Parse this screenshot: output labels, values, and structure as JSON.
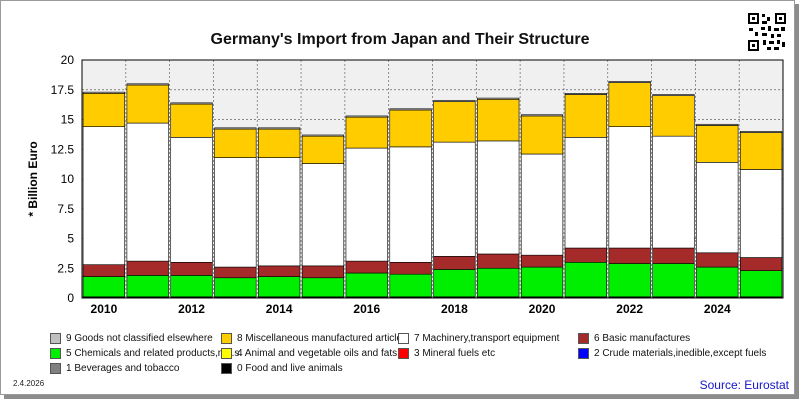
{
  "chart_data": {
    "type": "bar",
    "stacked": true,
    "title": "Germany's Import from Japan and Their Structure",
    "ylabel": "* Billion Euro",
    "xlabel": "",
    "ylim": [
      0,
      20
    ],
    "yticks": [
      "0",
      "2.5",
      "5",
      "7.5",
      "10",
      "12.5",
      "15",
      "17.5",
      "20"
    ],
    "grid": true,
    "legend_position": "bottom",
    "categories": [
      "2010",
      "2011",
      "2012",
      "2013",
      "2014",
      "2015",
      "2016",
      "2017",
      "2018",
      "2019",
      "2020",
      "2021",
      "2022",
      "2023",
      "2024",
      "2025"
    ],
    "x_tick_labels": [
      "2010",
      "2012",
      "2014",
      "2016",
      "2018",
      "2020",
      "2022",
      "2024"
    ],
    "series": [
      {
        "name": "0 Food and live animals",
        "color": "#000000",
        "values": [
          0.05,
          0.05,
          0.05,
          0.05,
          0.05,
          0.05,
          0.05,
          0.05,
          0.05,
          0.05,
          0.05,
          0.05,
          0.05,
          0.05,
          0.05,
          0.05
        ]
      },
      {
        "name": "1 Beverages and tobacco",
        "color": "#808080",
        "values": [
          0.0,
          0.0,
          0.0,
          0.0,
          0.0,
          0.0,
          0.0,
          0.0,
          0.0,
          0.0,
          0.0,
          0.0,
          0.0,
          0.0,
          0.0,
          0.0
        ]
      },
      {
        "name": "2 Crude materials,inedible,except fuels",
        "color": "#0000ff",
        "values": [
          0.05,
          0.05,
          0.05,
          0.05,
          0.05,
          0.05,
          0.05,
          0.05,
          0.05,
          0.05,
          0.05,
          0.05,
          0.05,
          0.05,
          0.05,
          0.05
        ]
      },
      {
        "name": "3 Mineral fuels etc",
        "color": "#ff0000",
        "values": [
          0.0,
          0.0,
          0.0,
          0.0,
          0.0,
          0.0,
          0.0,
          0.0,
          0.0,
          0.0,
          0.0,
          0.0,
          0.0,
          0.0,
          0.0,
          0.0
        ]
      },
      {
        "name": "4 Animal and vegetable oils and fats",
        "color": "#ffff00",
        "values": [
          0.0,
          0.0,
          0.0,
          0.0,
          0.0,
          0.0,
          0.0,
          0.0,
          0.0,
          0.0,
          0.0,
          0.0,
          0.0,
          0.0,
          0.0,
          0.0
        ]
      },
      {
        "name": "5 Chemicals and related products,n.e.s.",
        "color": "#00ee00",
        "values": [
          1.7,
          1.8,
          1.8,
          1.6,
          1.7,
          1.6,
          2.0,
          1.9,
          2.3,
          2.4,
          2.5,
          2.9,
          2.8,
          2.8,
          2.5,
          2.2
        ]
      },
      {
        "name": "6 Basic manufactures",
        "color": "#a52a2a",
        "values": [
          1.0,
          1.2,
          1.1,
          0.9,
          0.9,
          1.0,
          1.0,
          1.0,
          1.1,
          1.2,
          1.0,
          1.2,
          1.3,
          1.3,
          1.2,
          1.1
        ]
      },
      {
        "name": "7 Machinery,transport equipment",
        "color": "#ffffff",
        "values": [
          11.6,
          11.6,
          10.5,
          9.2,
          9.1,
          8.6,
          9.5,
          9.7,
          9.6,
          9.5,
          8.5,
          9.3,
          10.2,
          9.4,
          7.6,
          7.4
        ]
      },
      {
        "name": "8 Miscellaneous manufactured articles",
        "color": "#ffcc00",
        "values": [
          2.8,
          3.2,
          2.8,
          2.4,
          2.4,
          2.3,
          2.6,
          3.1,
          3.4,
          3.5,
          3.2,
          3.6,
          3.7,
          3.4,
          3.1,
          3.1
        ]
      },
      {
        "name": "9 Goods not classified elsewhere",
        "color": "#c0c0c0",
        "values": [
          0.1,
          0.1,
          0.1,
          0.1,
          0.1,
          0.1,
          0.1,
          0.1,
          0.1,
          0.1,
          0.1,
          0.1,
          0.1,
          0.1,
          0.1,
          0.1
        ]
      }
    ]
  },
  "legend": {
    "items": [
      {
        "label": "9 Goods not classified elsewhere",
        "color": "#c0c0c0"
      },
      {
        "label": "8 Miscellaneous manufactured articles",
        "color": "#ffcc00"
      },
      {
        "label": "7 Machinery,transport equipment",
        "color": "#ffffff"
      },
      {
        "label": "6 Basic manufactures",
        "color": "#a52a2a"
      },
      {
        "label": "5 Chemicals and related products,n.e.s.",
        "color": "#00ee00"
      },
      {
        "label": "4 Animal and vegetable oils and fats",
        "color": "#ffff00"
      },
      {
        "label": "3 Mineral fuels etc",
        "color": "#ff0000"
      },
      {
        "label": "2 Crude materials,inedible,except fuels",
        "color": "#0000ff"
      },
      {
        "label": "1 Beverages and tobacco",
        "color": "#808080"
      },
      {
        "label": "0 Food and live animals",
        "color": "#000000"
      }
    ]
  },
  "footer": {
    "date": "2.4.2026",
    "source": "Source: Eurostat"
  },
  "icons": {
    "qr": "qr-code-icon"
  }
}
